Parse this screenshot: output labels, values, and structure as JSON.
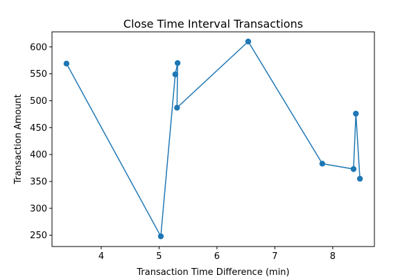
{
  "chart_data": {
    "type": "line",
    "title": "Close Time Interval Transactions",
    "xlabel": "Transaction Time Difference (min)",
    "ylabel": "Transaction Amount",
    "xlim": [
      3.15,
      8.72
    ],
    "ylim": [
      229,
      628
    ],
    "xticks": [
      4,
      5,
      6,
      7,
      8
    ],
    "yticks": [
      250,
      300,
      350,
      400,
      450,
      500,
      550,
      600
    ],
    "grid": false,
    "color": "#1f77b4",
    "series": [
      {
        "points": [
          [
            3.4,
            569
          ],
          [
            5.03,
            248
          ],
          [
            5.28,
            549
          ],
          [
            5.32,
            570
          ],
          [
            5.31,
            487
          ],
          [
            6.54,
            610
          ],
          [
            7.82,
            383
          ],
          [
            8.36,
            373
          ],
          [
            8.4,
            476
          ],
          [
            8.47,
            355
          ]
        ]
      }
    ]
  }
}
